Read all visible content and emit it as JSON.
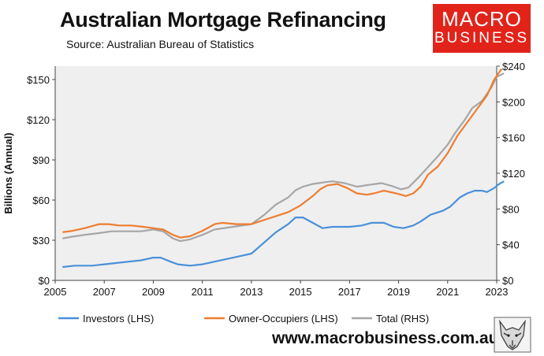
{
  "header": {
    "title": "Australian Mortgage Refinancing",
    "subtitle": "Source: Australian Bureau of Statistics"
  },
  "logo": {
    "line1": "MACRO",
    "line2": "BUSINESS",
    "color": "#e2231a"
  },
  "footer": {
    "url": "www.macrobusiness.com.au"
  },
  "chart_data": {
    "type": "line",
    "title": "Australian Mortgage Refinancing",
    "ylabel": "Billions (Annual)",
    "xlim": [
      2005,
      2023
    ],
    "ylim": [
      0,
      160
    ],
    "y2lim": [
      0,
      240
    ],
    "grid": false,
    "legend_position": "bottom",
    "x_ticks": [
      "2005",
      "2007",
      "2009",
      "2011",
      "2013",
      "2015",
      "2017",
      "2019",
      "2021",
      "2023"
    ],
    "y_ticks": [
      "$0",
      "$30",
      "$60",
      "$90",
      "$120",
      "$150"
    ],
    "y2_ticks": [
      "$0",
      "$40",
      "$80",
      "$120",
      "$160",
      "$200",
      "$240"
    ],
    "series": [
      {
        "name": "Investors (LHS)",
        "axis": "left",
        "color": "#4a90d9",
        "points": [
          [
            2005.3,
            10
          ],
          [
            2005.8,
            11
          ],
          [
            2006.5,
            11
          ],
          [
            2007.0,
            12
          ],
          [
            2007.5,
            13
          ],
          [
            2008.0,
            14
          ],
          [
            2008.5,
            15
          ],
          [
            2009.0,
            17
          ],
          [
            2009.3,
            17
          ],
          [
            2009.7,
            14
          ],
          [
            2010.0,
            12
          ],
          [
            2010.5,
            11
          ],
          [
            2011.0,
            12
          ],
          [
            2011.5,
            14
          ],
          [
            2012.0,
            16
          ],
          [
            2012.5,
            18
          ],
          [
            2013.0,
            20
          ],
          [
            2013.5,
            28
          ],
          [
            2014.0,
            36
          ],
          [
            2014.5,
            42
          ],
          [
            2014.8,
            47
          ],
          [
            2015.1,
            47
          ],
          [
            2015.5,
            43
          ],
          [
            2015.9,
            39
          ],
          [
            2016.3,
            40
          ],
          [
            2017.0,
            40
          ],
          [
            2017.5,
            41
          ],
          [
            2017.9,
            43
          ],
          [
            2018.4,
            43
          ],
          [
            2018.8,
            40
          ],
          [
            2019.2,
            39
          ],
          [
            2019.6,
            41
          ],
          [
            2019.9,
            44
          ],
          [
            2020.3,
            49
          ],
          [
            2020.8,
            52
          ],
          [
            2021.1,
            55
          ],
          [
            2021.5,
            62
          ],
          [
            2021.8,
            65
          ],
          [
            2022.1,
            67
          ],
          [
            2022.4,
            67
          ],
          [
            2022.6,
            66
          ],
          [
            2022.9,
            69
          ],
          [
            2023.1,
            72
          ],
          [
            2023.3,
            74
          ]
        ]
      },
      {
        "name": "Owner-Occupiers (LHS)",
        "axis": "left",
        "color": "#ed7d31",
        "points": [
          [
            2005.3,
            36
          ],
          [
            2005.7,
            37
          ],
          [
            2006.2,
            39
          ],
          [
            2006.8,
            42
          ],
          [
            2007.2,
            42
          ],
          [
            2007.6,
            41
          ],
          [
            2008.1,
            41
          ],
          [
            2008.6,
            40
          ],
          [
            2009.0,
            39
          ],
          [
            2009.4,
            38
          ],
          [
            2009.8,
            34
          ],
          [
            2010.1,
            32
          ],
          [
            2010.5,
            33
          ],
          [
            2011.0,
            37
          ],
          [
            2011.5,
            42
          ],
          [
            2011.8,
            43
          ],
          [
            2012.4,
            42
          ],
          [
            2013.0,
            42
          ],
          [
            2013.5,
            45
          ],
          [
            2014.0,
            48
          ],
          [
            2014.5,
            51
          ],
          [
            2015.0,
            56
          ],
          [
            2015.5,
            63
          ],
          [
            2015.8,
            68
          ],
          [
            2016.1,
            71
          ],
          [
            2016.5,
            72
          ],
          [
            2016.9,
            69
          ],
          [
            2017.3,
            65
          ],
          [
            2017.7,
            64
          ],
          [
            2018.0,
            65
          ],
          [
            2018.4,
            67
          ],
          [
            2018.9,
            65
          ],
          [
            2019.3,
            63
          ],
          [
            2019.6,
            65
          ],
          [
            2019.9,
            70
          ],
          [
            2020.2,
            79
          ],
          [
            2020.6,
            85
          ],
          [
            2021.0,
            95
          ],
          [
            2021.4,
            108
          ],
          [
            2021.8,
            118
          ],
          [
            2022.2,
            128
          ],
          [
            2022.6,
            138
          ],
          [
            2022.9,
            150
          ],
          [
            2023.2,
            158
          ]
        ]
      },
      {
        "name": "Total (RHS)",
        "axis": "right",
        "color": "#a6a6a6",
        "points": [
          [
            2005.3,
            47
          ],
          [
            2005.7,
            49
          ],
          [
            2006.2,
            51
          ],
          [
            2006.8,
            53
          ],
          [
            2007.3,
            55
          ],
          [
            2007.8,
            55
          ],
          [
            2008.5,
            55
          ],
          [
            2009.0,
            57
          ],
          [
            2009.4,
            55
          ],
          [
            2009.8,
            47
          ],
          [
            2010.1,
            44
          ],
          [
            2010.5,
            46
          ],
          [
            2011.0,
            51
          ],
          [
            2011.5,
            57
          ],
          [
            2012.0,
            59
          ],
          [
            2012.5,
            61
          ],
          [
            2013.0,
            63
          ],
          [
            2013.5,
            73
          ],
          [
            2014.0,
            85
          ],
          [
            2014.5,
            93
          ],
          [
            2014.8,
            101
          ],
          [
            2015.1,
            105
          ],
          [
            2015.5,
            108
          ],
          [
            2016.0,
            110
          ],
          [
            2016.3,
            111
          ],
          [
            2016.8,
            109
          ],
          [
            2017.3,
            105
          ],
          [
            2017.8,
            107
          ],
          [
            2018.3,
            109
          ],
          [
            2018.7,
            106
          ],
          [
            2019.1,
            102
          ],
          [
            2019.4,
            104
          ],
          [
            2019.8,
            115
          ],
          [
            2020.2,
            127
          ],
          [
            2020.6,
            139
          ],
          [
            2021.0,
            152
          ],
          [
            2021.3,
            165
          ],
          [
            2021.7,
            180
          ],
          [
            2022.0,
            193
          ],
          [
            2022.4,
            201
          ],
          [
            2022.8,
            217
          ],
          [
            2023.0,
            228
          ],
          [
            2023.3,
            232
          ]
        ]
      }
    ]
  }
}
